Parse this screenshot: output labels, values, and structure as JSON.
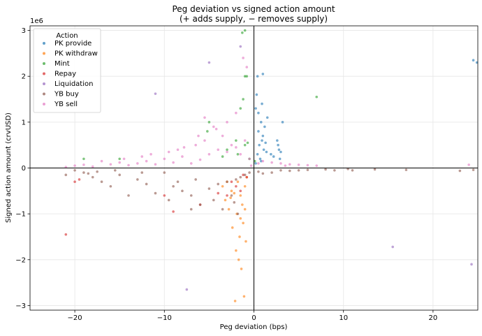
{
  "chart_data": {
    "type": "scatter",
    "title_line1": "Peg deviation vs signed action amount",
    "title_line2": "(+ adds supply, − removes supply)",
    "xlabel": "Peg deviation (bps)",
    "ylabel": "Signed action amount (crvUSD)",
    "y_multiplier": "1e6",
    "xlim": [
      -25,
      25
    ],
    "ylim": [
      -3.1,
      3.1
    ],
    "xticks": [
      -20,
      -10,
      0,
      10,
      20
    ],
    "xtick_labels": [
      "−20",
      "−10",
      "0",
      "10",
      "20"
    ],
    "yticks": [
      -3,
      -2,
      -1,
      0,
      1,
      2,
      3
    ],
    "ytick_labels": [
      "−3",
      "−2",
      "−1",
      "0",
      "1",
      "2",
      "3"
    ],
    "grid": true,
    "legend_title": "Action",
    "legend_position": "top-left",
    "reference_lines": {
      "x": 0,
      "y": 0
    },
    "series": [
      {
        "name": "PK provide",
        "color": "#1f77b4",
        "points": [
          [
            0.3,
            1.6
          ],
          [
            0.5,
            1.2
          ],
          [
            0.8,
            1.0
          ],
          [
            1.0,
            0.7
          ],
          [
            0.6,
            0.5
          ],
          [
            0.4,
            0.3
          ],
          [
            1.2,
            0.9
          ],
          [
            1.5,
            1.1
          ],
          [
            0.9,
            1.4
          ],
          [
            0.2,
            1.3
          ],
          [
            0.7,
            0.2
          ],
          [
            1.1,
            0.4
          ],
          [
            2.6,
            0.6
          ],
          [
            2.8,
            0.4
          ],
          [
            3.0,
            0.35
          ],
          [
            2.9,
            0.2
          ],
          [
            2.7,
            0.5
          ],
          [
            1.9,
            0.3
          ],
          [
            2.2,
            0.25
          ],
          [
            0.4,
            2.0
          ],
          [
            1.0,
            2.05
          ],
          [
            24.5,
            2.35
          ],
          [
            24.9,
            2.3
          ],
          [
            3.2,
            1.0
          ],
          [
            0.2,
            0.1
          ],
          [
            0.8,
            0.15
          ],
          [
            1.3,
            0.55
          ],
          [
            0.5,
            0.8
          ],
          [
            0.9,
            0.6
          ],
          [
            1.4,
            0.35
          ]
        ]
      },
      {
        "name": "PK withdraw",
        "color": "#ff7f0e",
        "points": [
          [
            -1.5,
            -0.6
          ],
          [
            -2.5,
            -0.5
          ],
          [
            -1.0,
            -0.9
          ],
          [
            -1.2,
            -1.2
          ],
          [
            -1.6,
            -1.5
          ],
          [
            -2.0,
            -1.8
          ],
          [
            -1.4,
            -2.2
          ],
          [
            -1.1,
            -2.8
          ],
          [
            -2.1,
            -2.9
          ],
          [
            -3.2,
            -0.7
          ],
          [
            -2.8,
            -0.9
          ],
          [
            -1.8,
            -0.3
          ],
          [
            -0.8,
            -0.2
          ],
          [
            -3.5,
            -0.4
          ],
          [
            -1.3,
            -0.8
          ],
          [
            -1.9,
            -1.0
          ],
          [
            -2.4,
            -1.3
          ],
          [
            -1.7,
            -2.0
          ],
          [
            -0.9,
            -1.6
          ],
          [
            -2.2,
            -0.55
          ],
          [
            -1.0,
            -0.4
          ],
          [
            -2.6,
            -0.65
          ],
          [
            -1.5,
            -1.1
          ],
          [
            -3.0,
            -0.3
          ]
        ]
      },
      {
        "name": "Mint",
        "color": "#2ca02c",
        "points": [
          [
            -1.0,
            3.0
          ],
          [
            -1.3,
            2.95
          ],
          [
            -0.8,
            2.0
          ],
          [
            -1.0,
            2.0
          ],
          [
            -1.2,
            1.5
          ],
          [
            -1.5,
            1.3
          ],
          [
            -5.0,
            1.0
          ],
          [
            -5.2,
            0.8
          ],
          [
            -2.0,
            0.6
          ],
          [
            -1.0,
            0.5
          ],
          [
            -3.0,
            0.4
          ],
          [
            -0.5,
            0.2
          ],
          [
            -1.8,
            0.3
          ],
          [
            0.1,
            0.15
          ],
          [
            7.0,
            1.55
          ],
          [
            -15.0,
            0.2
          ],
          [
            -19.0,
            0.2
          ],
          [
            -3.5,
            0.25
          ],
          [
            -0.7,
            0.55
          ]
        ]
      },
      {
        "name": "Repay",
        "color": "#d62728",
        "points": [
          [
            -21.0,
            -1.45
          ],
          [
            -20.0,
            -0.3
          ],
          [
            -19.5,
            -0.25
          ],
          [
            -1.5,
            -0.5
          ],
          [
            -2.5,
            -0.3
          ],
          [
            -3.0,
            -0.6
          ],
          [
            -0.8,
            -0.2
          ],
          [
            -9.0,
            -0.95
          ],
          [
            -10.0,
            -0.6
          ],
          [
            -6.0,
            -0.8
          ],
          [
            -4.0,
            -0.55
          ],
          [
            -1.2,
            -0.15
          ],
          [
            -2.0,
            -0.4
          ]
        ]
      },
      {
        "name": "Liquidation",
        "color": "#9467bd",
        "points": [
          [
            -7.5,
            -2.65
          ],
          [
            15.5,
            -1.72
          ],
          [
            24.3,
            -2.1
          ],
          [
            -11.0,
            1.62
          ],
          [
            -5.0,
            2.3
          ],
          [
            -1.5,
            2.65
          ]
        ]
      },
      {
        "name": "YB buy",
        "color": "#8c564b",
        "points": [
          [
            -20.0,
            -0.05
          ],
          [
            -19.0,
            -0.1
          ],
          [
            -18.0,
            -0.2
          ],
          [
            -17.0,
            -0.3
          ],
          [
            -15.0,
            -0.15
          ],
          [
            -13.0,
            -0.25
          ],
          [
            -12.0,
            -0.35
          ],
          [
            -10.0,
            -0.1
          ],
          [
            -9.0,
            -0.4
          ],
          [
            -8.0,
            -0.5
          ],
          [
            -7.0,
            -0.6
          ],
          [
            -6.0,
            -0.8
          ],
          [
            -5.0,
            -0.45
          ],
          [
            -4.0,
            -0.35
          ],
          [
            -3.0,
            -0.3
          ],
          [
            -2.5,
            -0.6
          ],
          [
            -2.0,
            -0.25
          ],
          [
            -1.5,
            -0.2
          ],
          [
            -1.0,
            -0.15
          ],
          [
            -0.5,
            -0.1
          ],
          [
            0.5,
            -0.08
          ],
          [
            1.0,
            -0.12
          ],
          [
            2.0,
            -0.1
          ],
          [
            3.0,
            -0.05
          ],
          [
            5.0,
            -0.05
          ],
          [
            8.0,
            -0.03
          ],
          [
            11.0,
            -0.05
          ],
          [
            13.5,
            -0.03
          ],
          [
            17.0,
            -0.04
          ],
          [
            -14.0,
            -0.6
          ],
          [
            -11.0,
            -0.55
          ],
          [
            -16.0,
            -0.4
          ],
          [
            -21.0,
            -0.15
          ],
          [
            -9.5,
            -0.7
          ],
          [
            -7.0,
            -0.9
          ],
          [
            -8.5,
            -0.3
          ],
          [
            -6.5,
            -0.25
          ],
          [
            -4.5,
            -0.7
          ],
          [
            -3.5,
            -0.9
          ],
          [
            -2.2,
            -0.75
          ],
          [
            -1.8,
            -1.0
          ],
          [
            -12.5,
            -0.1
          ],
          [
            -15.5,
            -0.05
          ],
          [
            -17.5,
            -0.08
          ],
          [
            -18.5,
            -0.12
          ],
          [
            4.0,
            -0.06
          ],
          [
            6.0,
            -0.04
          ],
          [
            9.0,
            -0.05
          ],
          [
            10.5,
            -0.02
          ],
          [
            23.0,
            -0.06
          ],
          [
            24.5,
            -0.04
          ]
        ]
      },
      {
        "name": "YB sell",
        "color": "#e377c2",
        "points": [
          [
            -20.0,
            0.05
          ],
          [
            -18.0,
            0.03
          ],
          [
            -16.0,
            0.08
          ],
          [
            -15.0,
            0.12
          ],
          [
            -14.0,
            0.06
          ],
          [
            -13.0,
            0.1
          ],
          [
            -12.0,
            0.15
          ],
          [
            -11.0,
            0.08
          ],
          [
            -10.0,
            0.2
          ],
          [
            -9.0,
            0.12
          ],
          [
            -8.0,
            0.25
          ],
          [
            -7.0,
            0.1
          ],
          [
            -6.0,
            0.18
          ],
          [
            -5.0,
            0.3
          ],
          [
            -4.0,
            0.4
          ],
          [
            -3.0,
            0.35
          ],
          [
            -2.5,
            0.5
          ],
          [
            -2.0,
            0.45
          ],
          [
            -1.5,
            0.3
          ],
          [
            -1.0,
            0.6
          ],
          [
            -0.5,
            0.2
          ],
          [
            0.5,
            0.1
          ],
          [
            1.0,
            0.15
          ],
          [
            2.0,
            0.12
          ],
          [
            3.0,
            0.1
          ],
          [
            4.0,
            0.08
          ],
          [
            5.0,
            0.07
          ],
          [
            6.0,
            0.06
          ],
          [
            7.0,
            0.05
          ],
          [
            -3.5,
            0.7
          ],
          [
            -4.5,
            0.9
          ],
          [
            -5.5,
            0.6
          ],
          [
            -6.5,
            0.5
          ],
          [
            -8.5,
            0.4
          ],
          [
            -9.5,
            0.35
          ],
          [
            -11.5,
            0.3
          ],
          [
            -12.5,
            0.25
          ],
          [
            -14.5,
            0.2
          ],
          [
            -1.2,
            2.4
          ],
          [
            -2.0,
            1.2
          ],
          [
            -3.0,
            1.0
          ],
          [
            -0.8,
            2.2
          ],
          [
            -5.5,
            1.1
          ],
          [
            -4.2,
            0.85
          ],
          [
            -6.2,
            0.7
          ],
          [
            -7.8,
            0.45
          ],
          [
            -17.0,
            0.15
          ],
          [
            -19.0,
            0.07
          ],
          [
            -21.0,
            0.02
          ],
          [
            24.0,
            0.07
          ],
          [
            3.5,
            0.05
          ],
          [
            -0.3,
            0.05
          ]
        ]
      }
    ]
  }
}
